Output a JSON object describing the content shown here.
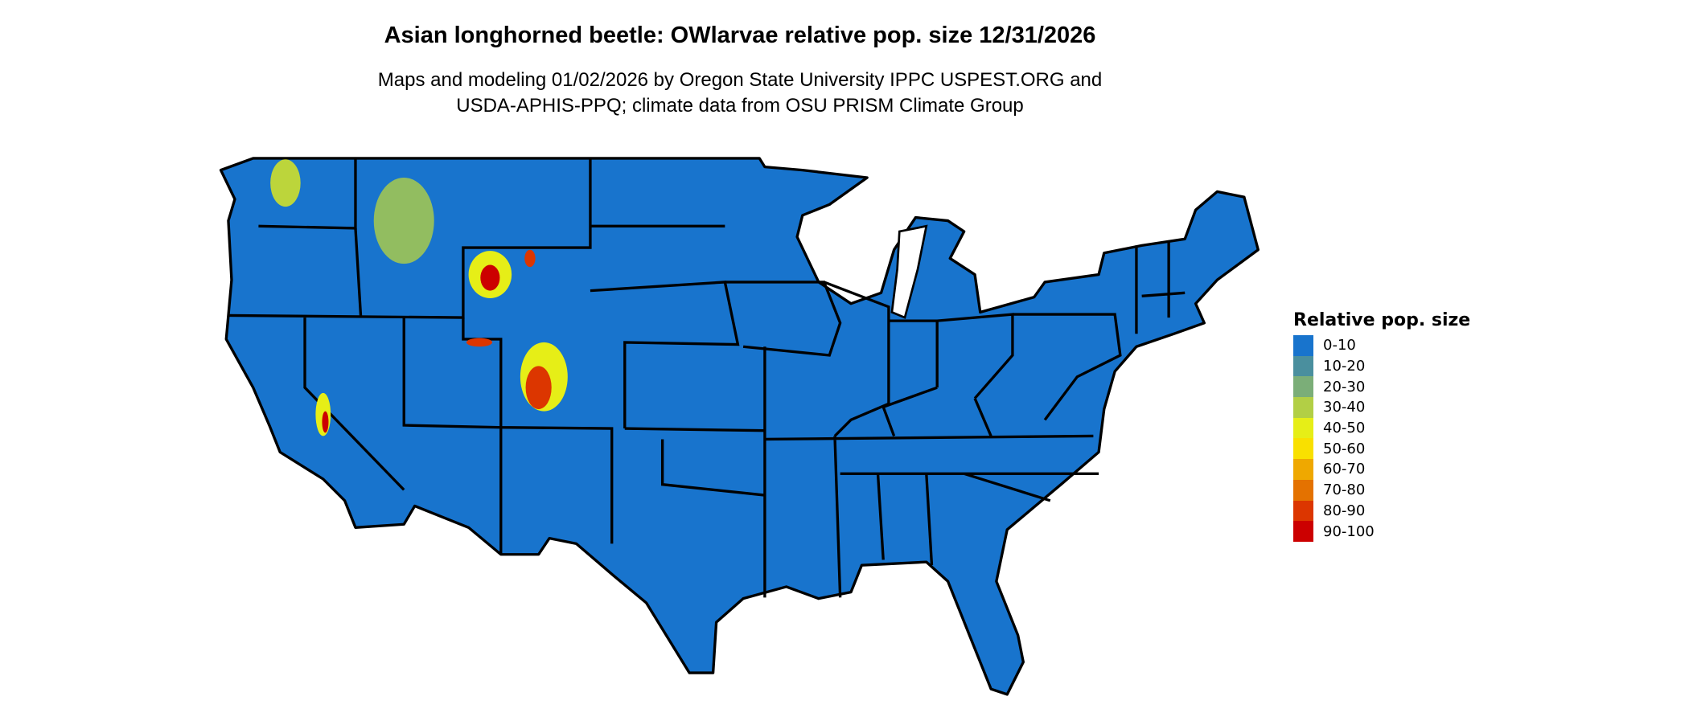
{
  "title": "Asian longhorned beetle: OWlarvae relative pop. size 12/31/2026",
  "subtitle_lines": [
    "Maps and modeling 01/02/2026 by Oregon State University IPPC USPEST.ORG and",
    "USDA-APHIS-PPQ; climate data from OSU PRISM Climate Group"
  ],
  "map": {
    "region": "Contiguous United States",
    "base_color": "#1874CD",
    "border_color": "#000000"
  },
  "legend": {
    "title": "Relative pop. size",
    "items": [
      {
        "label": "0-10",
        "color": "#1874CD"
      },
      {
        "label": "10-20",
        "color": "#4A8F9E"
      },
      {
        "label": "20-30",
        "color": "#7BAE78"
      },
      {
        "label": "30-40",
        "color": "#B2CF45"
      },
      {
        "label": "40-50",
        "color": "#E6EE17"
      },
      {
        "label": "50-60",
        "color": "#F9E000"
      },
      {
        "label": "60-70",
        "color": "#EFA800"
      },
      {
        "label": "70-80",
        "color": "#E47200"
      },
      {
        "label": "80-90",
        "color": "#DC3600"
      },
      {
        "label": "90-100",
        "color": "#CC0000"
      }
    ]
  }
}
